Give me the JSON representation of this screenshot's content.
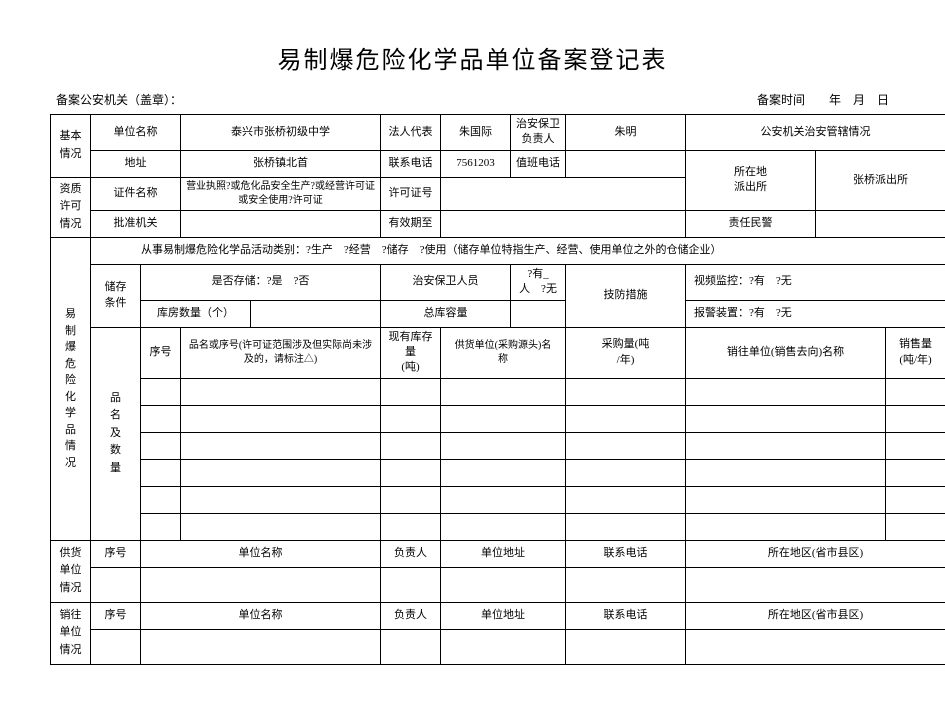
{
  "title": "易制爆危险化学品单位备案登记表",
  "top_left": "备案公安机关（盖章）：",
  "top_right": "备案时间　　年　月　日",
  "labels": {
    "basic_info": "基本\n情况",
    "cred_info": "资质\n许可\n情况",
    "chem_info": "易\n制\n爆\n危\n险\n化\n学\n品\n情\n况",
    "supply_info": "供货\n单位\n情况",
    "sales_info": "销往\n单位\n情况",
    "unit_name": "单位名称",
    "legal_rep": "法人代表",
    "security_head": "治安保卫\n负责人",
    "gov_info": "公安机关治安管辖情况",
    "address": "地址",
    "contact_tel": "联系电话",
    "duty_tel": "值班电话",
    "local_station": "所在地\n派出所",
    "cert_name": "证件名称",
    "cert_no": "许可证号",
    "approve_org": "批准机关",
    "valid_until": "有效期至",
    "resp_police": "责任民警",
    "activity_type": "从事易制爆危险化学品活动类别：?生产　?经营　?储存　?使用（储存单位特指生产、经营、使用单位之外的仓储企业）",
    "storage_cond": "储存\n条件",
    "has_storage": "是否存储：?是　?否",
    "security_staff": "治安保卫人员",
    "has_people": "?有_人　?无",
    "tech_def": "技防措施",
    "video_mon": "视频监控：?有　?无",
    "warehouse_count": "库房数量（个）",
    "total_capacity": "总库容量",
    "alarm_device": "报警装置：?有　?无",
    "name_qty": "品\n名\n及\n数\n量",
    "seq": "序号",
    "item_name_note": "品名或序号(许可证范围涉及但实际尚未涉及的，请标注△)",
    "curr_stock": "现有库存量\n(吨)",
    "supplier_name": "供货单位(采购源头)名\n称",
    "purchase_amt": "采购量(吨\n/年)",
    "buyer_name": "销往单位(销售去向)名称",
    "sales_amt": "销售量\n(吨/年)",
    "unit_name2": "单位名称",
    "person": "负责人",
    "unit_addr": "单位地址",
    "tel": "联系电话",
    "region": "所在地区(省市县区)"
  },
  "values": {
    "unit_name": "泰兴市张桥初级中学",
    "legal_rep": "朱国际",
    "security_head": "朱明",
    "address": "张桥镇北首",
    "contact_tel": "7561203",
    "cert_name": "营业执照?或危化品安全生产?或经营许可证或安全使用?许可证",
    "local_station": "张桥派出所"
  }
}
